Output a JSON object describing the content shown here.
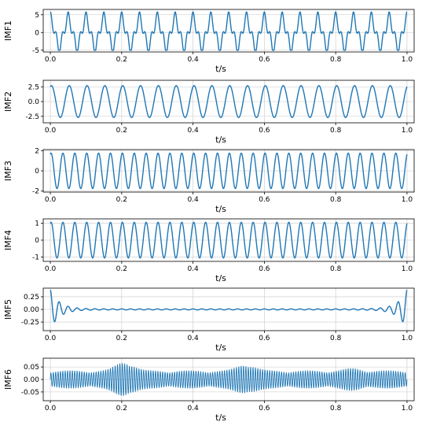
{
  "chart_data": [
    {
      "type": "line",
      "ylabel": "IMF1",
      "xlabel": "t/s",
      "xlim": [
        -0.02,
        1.02
      ],
      "ylim": [
        -5.5,
        6.5
      ],
      "xticks": [
        0.0,
        0.2,
        0.4,
        0.6,
        0.8,
        1.0
      ],
      "xtick_labels": [
        "0.0",
        "0.2",
        "0.4",
        "0.6",
        "0.8",
        "1.0"
      ],
      "yticks": [
        -5,
        0,
        5
      ],
      "ytick_labels": [
        "-5",
        "0",
        "5"
      ],
      "grid": true,
      "color": "#1f77b4",
      "signal": {
        "kind": "two-tone",
        "f1": 20,
        "a1": 4.0,
        "f2": 60,
        "a2": 1.8,
        "amplitude_range": [
          -5,
          6
        ]
      }
    },
    {
      "type": "line",
      "ylabel": "IMF2",
      "xlabel": "t/s",
      "xlim": [
        -0.02,
        1.02
      ],
      "ylim": [
        -3.6,
        3.6
      ],
      "xticks": [
        0.0,
        0.2,
        0.4,
        0.6,
        0.8,
        1.0
      ],
      "xtick_labels": [
        "0.0",
        "0.2",
        "0.4",
        "0.6",
        "0.8",
        "1.0"
      ],
      "yticks": [
        -2.5,
        0.0,
        2.5
      ],
      "ytick_labels": [
        "-2.5",
        "0.0",
        "2.5"
      ],
      "grid": true,
      "color": "#1f77b4",
      "signal": {
        "kind": "sine",
        "freq": 20,
        "amplitude": 2.7,
        "amplitude_range": [
          -3,
          3
        ]
      }
    },
    {
      "type": "line",
      "ylabel": "IMF3",
      "xlabel": "t/s",
      "xlim": [
        -0.02,
        1.02
      ],
      "ylim": [
        -2.1,
        2.1
      ],
      "xticks": [
        0.0,
        0.2,
        0.4,
        0.6,
        0.8,
        1.0
      ],
      "xtick_labels": [
        "0.0",
        "0.2",
        "0.4",
        "0.6",
        "0.8",
        "1.0"
      ],
      "yticks": [
        -2,
        0,
        2
      ],
      "ytick_labels": [
        "-2",
        "0",
        "2"
      ],
      "grid": true,
      "color": "#1f77b4",
      "signal": {
        "kind": "sine",
        "freq": 30,
        "amplitude": 1.75,
        "amplitude_range": [
          -1.8,
          1.8
        ]
      }
    },
    {
      "type": "line",
      "ylabel": "IMF4",
      "xlabel": "t/s",
      "xlim": [
        -0.02,
        1.02
      ],
      "ylim": [
        -1.25,
        1.25
      ],
      "xticks": [
        0.0,
        0.2,
        0.4,
        0.6,
        0.8,
        1.0
      ],
      "xtick_labels": [
        "0.0",
        "0.2",
        "0.4",
        "0.6",
        "0.8",
        "1.0"
      ],
      "yticks": [
        -1,
        0,
        1
      ],
      "ytick_labels": [
        "-1",
        "0",
        "1"
      ],
      "grid": true,
      "color": "#1f77b4",
      "signal": {
        "kind": "sine",
        "freq": 30,
        "amplitude": 1.05,
        "amplitude_range": [
          -1.1,
          1.1
        ]
      }
    },
    {
      "type": "line",
      "ylabel": "IMF5",
      "xlabel": "t/s",
      "xlim": [
        -0.02,
        1.02
      ],
      "ylim": [
        -0.42,
        0.42
      ],
      "xticks": [
        0.0,
        0.2,
        0.4,
        0.6,
        0.8,
        1.0
      ],
      "xtick_labels": [
        "0.0",
        "0.2",
        "0.4",
        "0.6",
        "0.8",
        "1.0"
      ],
      "yticks": [
        -0.25,
        0.0,
        0.25
      ],
      "ytick_labels": [
        "-0.25",
        "0.00",
        "0.25"
      ],
      "grid": true,
      "color": "#1f77b4",
      "signal": {
        "kind": "edge-decay",
        "freq": 40,
        "edge_amplitude": 0.38,
        "decay": 0.025,
        "floor": 0.01,
        "amplitude_range": [
          -0.38,
          0.38
        ]
      }
    },
    {
      "type": "line",
      "ylabel": "IMF6",
      "xlabel": "t/s",
      "xlim": [
        -0.02,
        1.02
      ],
      "ylim": [
        -0.085,
        0.085
      ],
      "xticks": [
        0.0,
        0.2,
        0.4,
        0.6,
        0.8,
        1.0
      ],
      "xtick_labels": [
        "0.0",
        "0.2",
        "0.4",
        "0.6",
        "0.8",
        "1.0"
      ],
      "yticks": [
        -0.05,
        0.0,
        0.05
      ],
      "ytick_labels": [
        "-0.05",
        "0.00",
        "0.05"
      ],
      "grid": true,
      "color": "#1f77b4",
      "signal": {
        "kind": "beating",
        "freq": 150,
        "base_amplitude": 0.035,
        "bursts": [
          [
            0.21,
            0.075
          ],
          [
            0.55,
            0.065
          ],
          [
            0.85,
            0.045
          ]
        ],
        "amplitude_range": [
          -0.075,
          0.075
        ]
      }
    }
  ]
}
